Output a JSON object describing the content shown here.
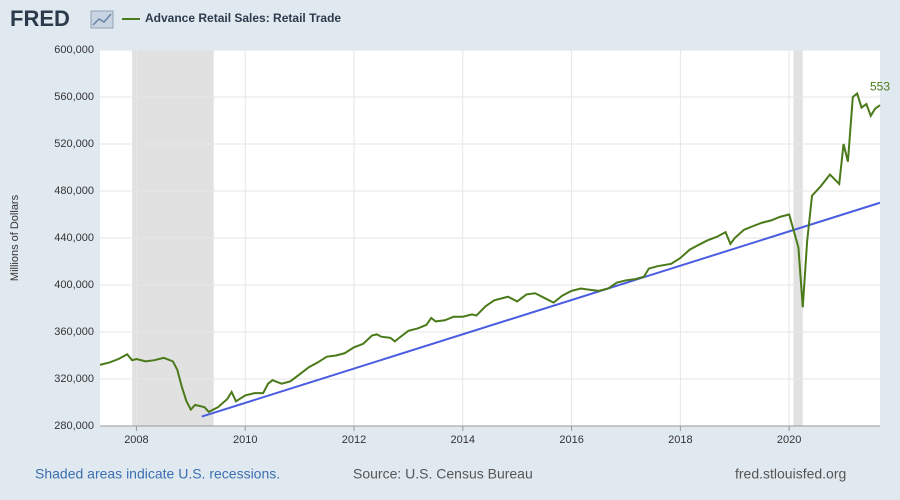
{
  "chart_data": {
    "type": "line",
    "logo": "FRED",
    "y_label": "Millions of Dollars",
    "footer": {
      "left": "Shaded areas indicate U.S. recessions.",
      "center": "Source: U.S. Census Bureau",
      "right": "fred.stlouisfed.org"
    },
    "annotation": "553",
    "xlim": [
      2007.33,
      2021.67
    ],
    "xticks": [
      2008,
      2010,
      2012,
      2014,
      2016,
      2018,
      2020
    ],
    "ylim": [
      280000,
      600000
    ],
    "yticks": [
      {
        "value": 280000,
        "label": "280,000"
      },
      {
        "value": 320000,
        "label": "320,000"
      },
      {
        "value": 360000,
        "label": "360,000"
      },
      {
        "value": 400000,
        "label": "400,000"
      },
      {
        "value": 440000,
        "label": "440,000"
      },
      {
        "value": 480000,
        "label": "480,000"
      },
      {
        "value": 520000,
        "label": "520,000"
      },
      {
        "value": 560000,
        "label": "560,000"
      },
      {
        "value": 600000,
        "label": "600,000"
      }
    ],
    "grid": true,
    "recessions": [
      [
        2007.92,
        2009.42
      ],
      [
        2020.08,
        2020.25
      ]
    ],
    "recession_color": "#e1e1e1",
    "series": [
      {
        "name": "Advance Retail Sales: Retail Trade",
        "color": "#4b7a1a",
        "x": [
          2007.33,
          2007.5,
          2007.67,
          2007.83,
          2007.92,
          2008.0,
          2008.17,
          2008.33,
          2008.5,
          2008.67,
          2008.75,
          2008.83,
          2008.92,
          2009.0,
          2009.08,
          2009.25,
          2009.33,
          2009.5,
          2009.67,
          2009.75,
          2009.83,
          2010.0,
          2010.17,
          2010.33,
          2010.42,
          2010.5,
          2010.67,
          2010.83,
          2011.0,
          2011.17,
          2011.33,
          2011.5,
          2011.67,
          2011.83,
          2012.0,
          2012.17,
          2012.33,
          2012.42,
          2012.5,
          2012.67,
          2012.75,
          2012.83,
          2013.0,
          2013.17,
          2013.33,
          2013.42,
          2013.5,
          2013.67,
          2013.83,
          2014.0,
          2014.17,
          2014.25,
          2014.42,
          2014.58,
          2014.83,
          2015.0,
          2015.17,
          2015.33,
          2015.5,
          2015.67,
          2015.83,
          2016.0,
          2016.17,
          2016.33,
          2016.5,
          2016.67,
          2016.83,
          2017.0,
          2017.17,
          2017.33,
          2017.42,
          2017.58,
          2017.83,
          2018.0,
          2018.17,
          2018.33,
          2018.5,
          2018.67,
          2018.83,
          2018.92,
          2019.0,
          2019.17,
          2019.33,
          2019.5,
          2019.67,
          2019.83,
          2020.0,
          2020.17,
          2020.25,
          2020.33,
          2020.42,
          2020.58,
          2020.75,
          2020.92,
          2021.0,
          2021.08,
          2021.17,
          2021.25,
          2021.33,
          2021.42,
          2021.5,
          2021.58,
          2021.67
        ],
        "values": [
          332000,
          334000,
          337000,
          341000,
          336000,
          337000,
          335000,
          336000,
          338000,
          335000,
          328000,
          314000,
          301000,
          294000,
          298000,
          296000,
          292000,
          296000,
          303000,
          309000,
          301000,
          306000,
          308000,
          308000,
          316000,
          319000,
          316000,
          318000,
          324000,
          330000,
          334000,
          339000,
          340000,
          342000,
          347000,
          350000,
          357000,
          358000,
          356000,
          355000,
          352000,
          355000,
          361000,
          363000,
          366000,
          372000,
          369000,
          370000,
          373000,
          373000,
          375000,
          374000,
          382000,
          387000,
          390000,
          386000,
          392000,
          393000,
          389000,
          385000,
          391000,
          395000,
          397000,
          396000,
          395000,
          397000,
          402000,
          404000,
          405000,
          407000,
          414000,
          416000,
          418000,
          423000,
          430000,
          434000,
          438000,
          441000,
          445000,
          435000,
          440000,
          447000,
          450000,
          453000,
          455000,
          458000,
          460000,
          432000,
          381000,
          437000,
          476000,
          484000,
          494000,
          486000,
          520000,
          505000,
          560000,
          563000,
          551000,
          554000,
          544000,
          550000,
          553000
        ]
      }
    ],
    "trend_line": {
      "color": "#4a5de0",
      "x": [
        2009.2,
        2021.67
      ],
      "values": [
        288000,
        470000
      ]
    }
  }
}
